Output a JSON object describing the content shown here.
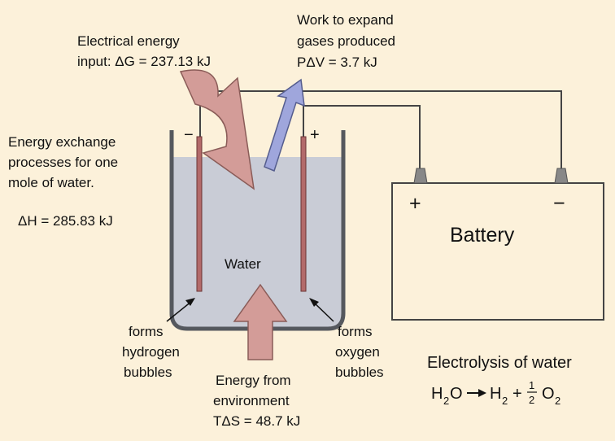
{
  "electrical_input": {
    "lines": [
      "Electrical energy",
      "input: ΔG = 237.13 kJ"
    ]
  },
  "work_expand": {
    "lines": [
      "Work to expand",
      "gases produced",
      "PΔV = 3.7 kJ"
    ]
  },
  "energy_exchange": {
    "lines": [
      "Energy exchange",
      "processes for one",
      "mole of water."
    ]
  },
  "enthalpy": "ΔH = 285.83 kJ",
  "electrodes": {
    "cathode_sign": "−",
    "anode_sign": "+"
  },
  "water_label": "Water",
  "battery": {
    "label": "Battery",
    "plus": "+",
    "minus": "−"
  },
  "hydrogen_note": {
    "lines": [
      "forms",
      "hydrogen",
      "bubbles"
    ]
  },
  "oxygen_note": {
    "lines": [
      "forms",
      "oxygen",
      "bubbles"
    ]
  },
  "environment": {
    "lines": [
      "Energy from",
      "environment",
      "TΔS = 48.7 kJ"
    ]
  },
  "caption": "Electrolysis of water",
  "equation": {
    "h2o_h": "H",
    "h2o_sub": "2",
    "h2o_o": "O",
    "h2_h": "H",
    "h2_sub": "2",
    "plus": "+",
    "num": "1",
    "den": "2",
    "o2_o": "O",
    "o2_sub": "2"
  }
}
